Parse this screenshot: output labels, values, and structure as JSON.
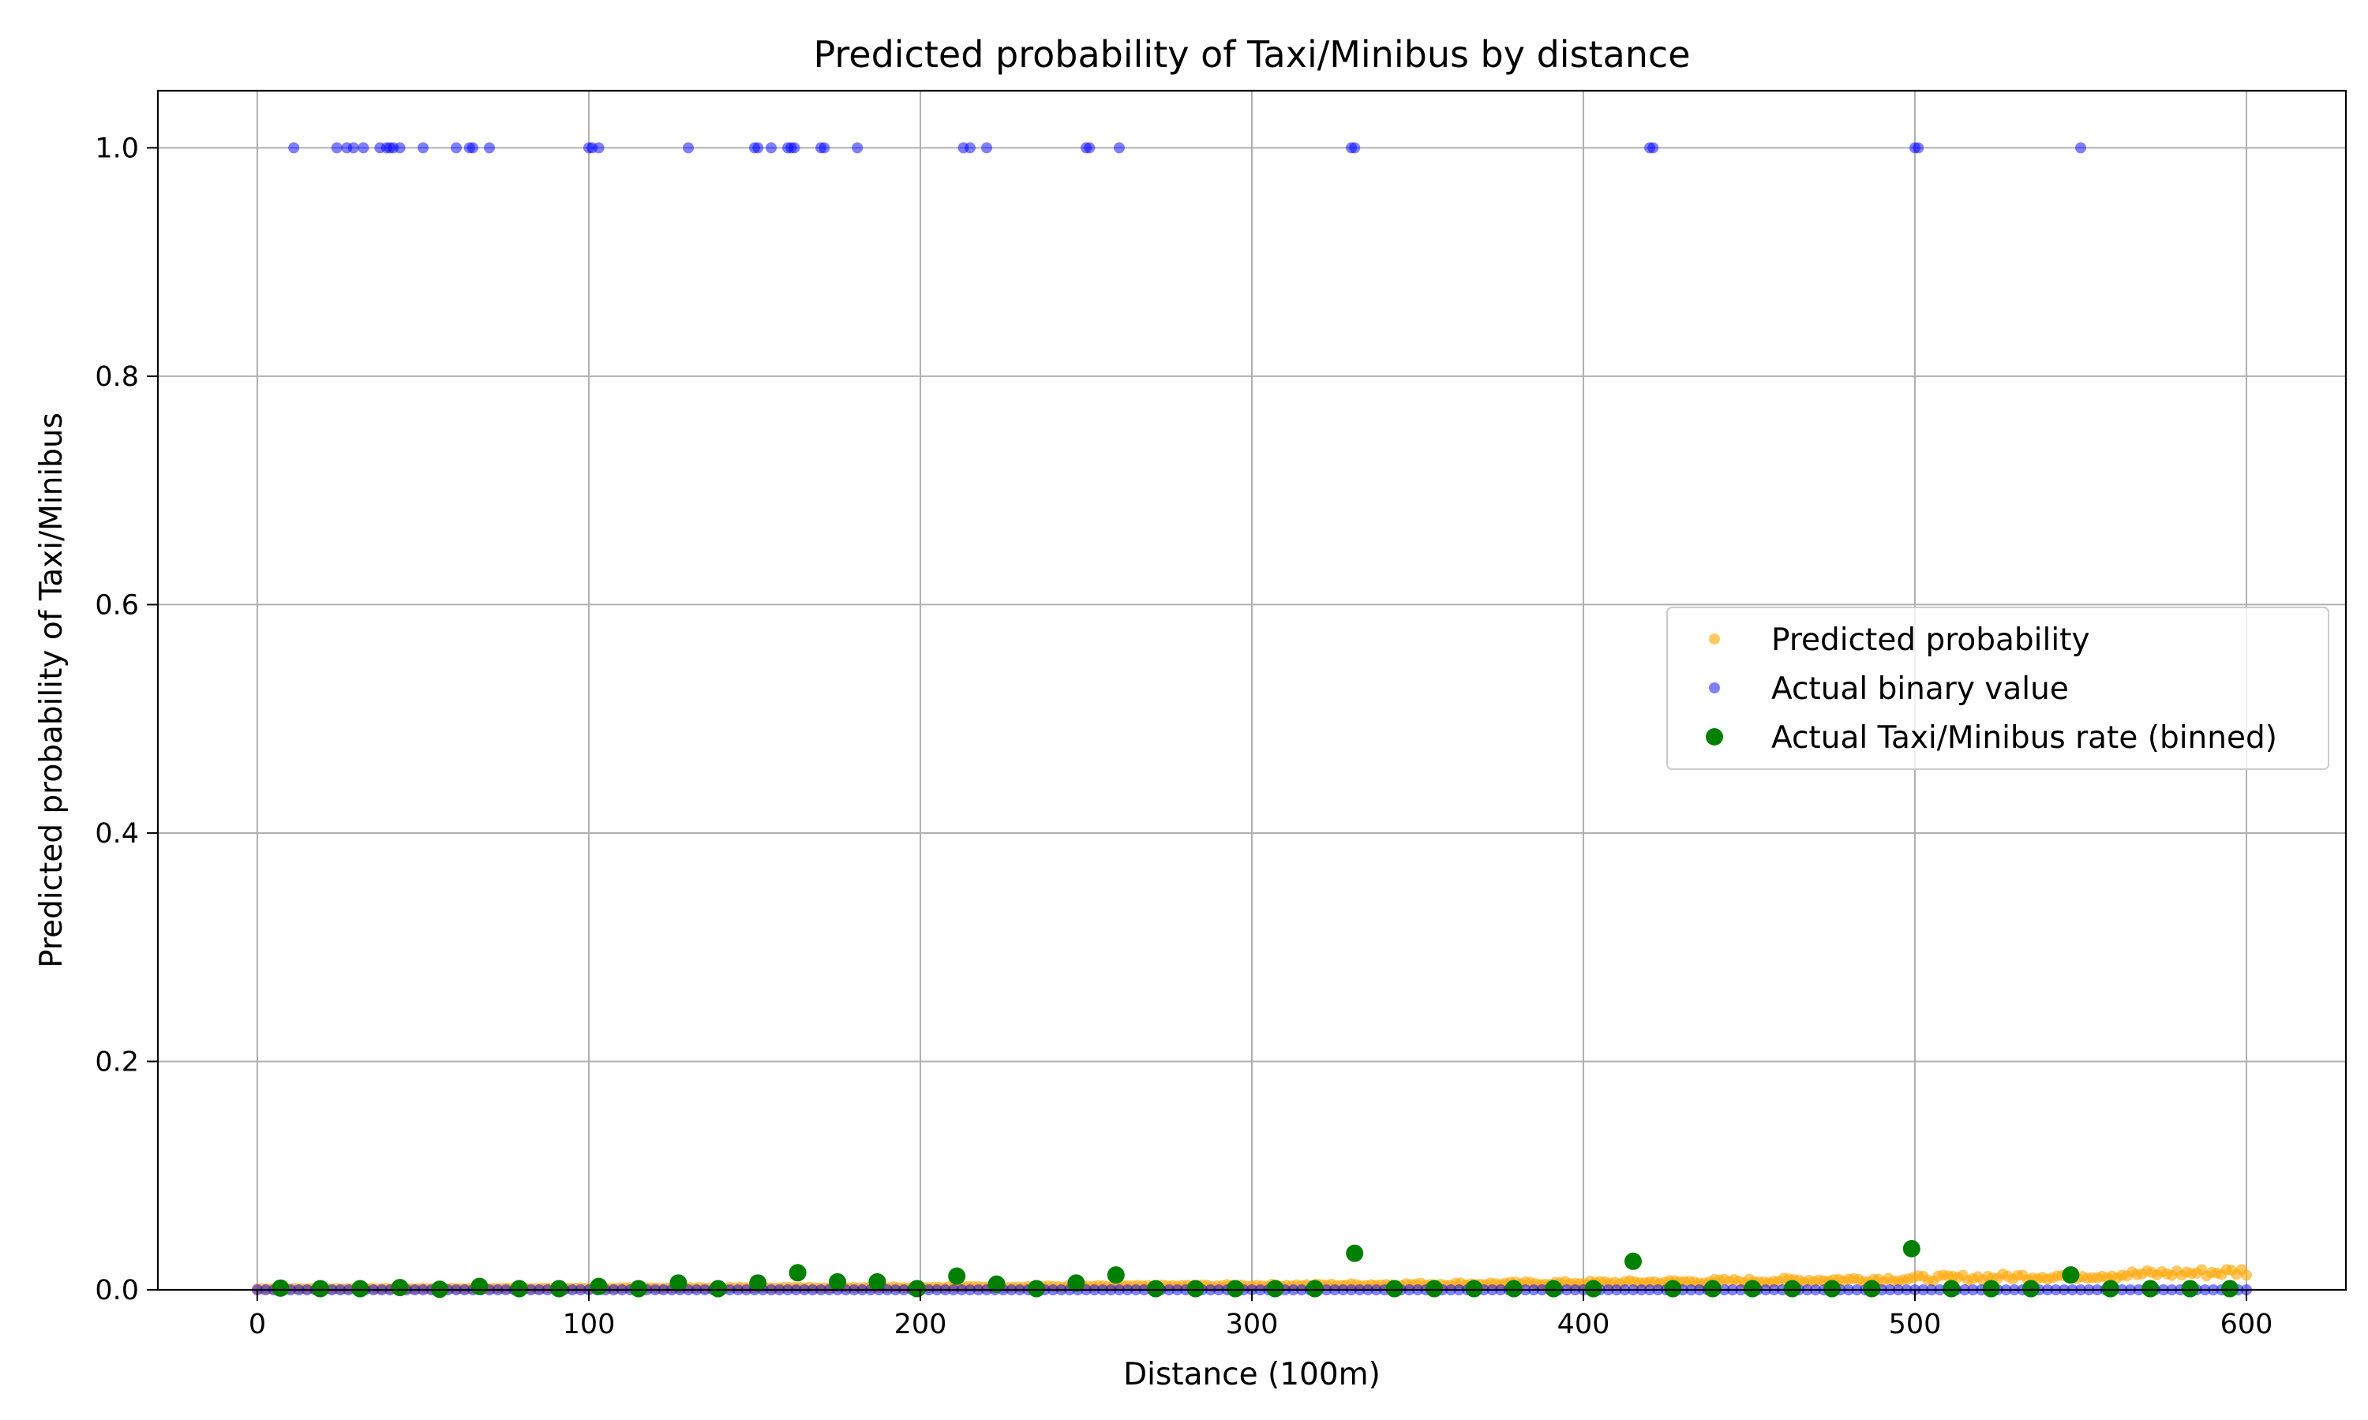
{
  "chart_data": {
    "type": "scatter",
    "title": "Predicted probability of Taxi/Minibus by distance",
    "xlabel": "Distance (100m)",
    "ylabel": "Predicted probability of Taxi/Minibus",
    "xlim": [
      -30,
      630
    ],
    "ylim": [
      0,
      1.05
    ],
    "x_ticks": [
      0,
      100,
      200,
      300,
      400,
      500,
      600
    ],
    "y_ticks": [
      0.0,
      0.2,
      0.4,
      0.6,
      0.8,
      1.0
    ],
    "x_tick_labels": [
      "0",
      "100",
      "200",
      "300",
      "400",
      "500",
      "600"
    ],
    "y_tick_labels": [
      "0.0",
      "0.2",
      "0.4",
      "0.6",
      "0.8",
      "1.0"
    ],
    "grid": true,
    "legend_position": "center-right",
    "series": [
      {
        "name": "Predicted probability",
        "color": "#ffa500",
        "alpha": 0.6,
        "marker_size": "small",
        "model": {
          "type": "exponential",
          "p0": 0.0009,
          "p600": 0.016,
          "x_min": 0,
          "x_max": 600
        }
      },
      {
        "name": "Actual binary value",
        "color": "#0000ff",
        "alpha": 0.5,
        "marker_size": "small",
        "ones_x": [
          11,
          24,
          27,
          29,
          32,
          37,
          39,
          40,
          41,
          43,
          50,
          60,
          64,
          65,
          70,
          100,
          101,
          103,
          130,
          150,
          151,
          155,
          160,
          161,
          162,
          170,
          171,
          181,
          213,
          215,
          220,
          250,
          251,
          260,
          330,
          331,
          420,
          421,
          500,
          501,
          550
        ],
        "zeros_x_range": [
          0,
          600
        ]
      },
      {
        "name": "Actual Taxi/Minibus rate (binned)",
        "color": "#008000",
        "alpha": 1,
        "marker_size": "large",
        "points": [
          [
            7,
            0.0015
          ],
          [
            19,
            0.001
          ],
          [
            31,
            0.001
          ],
          [
            43,
            0.002
          ],
          [
            55,
            0.0005
          ],
          [
            67,
            0.003
          ],
          [
            79,
            0.001
          ],
          [
            91,
            0.001
          ],
          [
            103,
            0.003
          ],
          [
            115,
            0.001
          ],
          [
            127,
            0.006
          ],
          [
            139,
            0.001
          ],
          [
            151,
            0.006
          ],
          [
            163,
            0.015
          ],
          [
            175,
            0.007
          ],
          [
            187,
            0.007
          ],
          [
            199,
            0.001
          ],
          [
            211,
            0.012
          ],
          [
            223,
            0.005
          ],
          [
            235,
            0.001
          ],
          [
            247,
            0.006
          ],
          [
            259,
            0.013
          ],
          [
            271,
            0.001
          ],
          [
            283,
            0.001
          ],
          [
            295,
            0.001
          ],
          [
            307,
            0.001
          ],
          [
            319,
            0.001
          ],
          [
            331,
            0.032
          ],
          [
            343,
            0.001
          ],
          [
            355,
            0.001
          ],
          [
            367,
            0.001
          ],
          [
            379,
            0.001
          ],
          [
            391,
            0.001
          ],
          [
            403,
            0.001
          ],
          [
            415,
            0.025
          ],
          [
            427,
            0.001
          ],
          [
            439,
            0.001
          ],
          [
            451,
            0.001
          ],
          [
            463,
            0.001
          ],
          [
            475,
            0.001
          ],
          [
            487,
            0.001
          ],
          [
            499,
            0.036
          ],
          [
            511,
            0.001
          ],
          [
            523,
            0.001
          ],
          [
            535,
            0.001
          ],
          [
            547,
            0.013
          ],
          [
            559,
            0.001
          ],
          [
            571,
            0.001
          ],
          [
            583,
            0.001
          ],
          [
            595,
            0.001
          ]
        ]
      }
    ]
  }
}
